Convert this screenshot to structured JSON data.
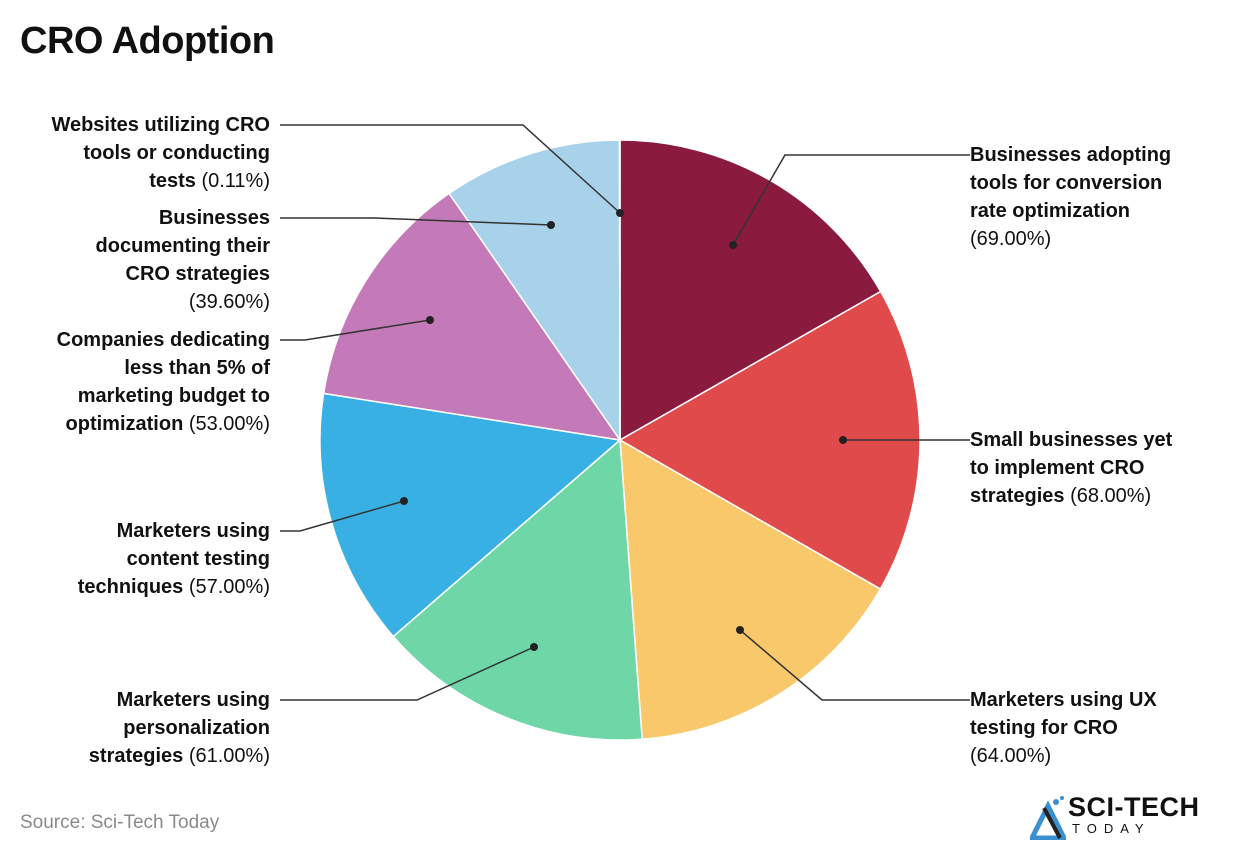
{
  "title": "CRO Adoption",
  "source": "Source: Sci-Tech Today",
  "logo": {
    "name": "SCI-TECH",
    "sub": "TODAY"
  },
  "chart_data": {
    "type": "pie",
    "title": "CRO Adoption",
    "slices": [
      {
        "lines": [
          "Businesses adopting",
          "tools for conversion",
          "rate optimization",
          ""
        ],
        "value": 69.0,
        "value_label": "(69.00%)",
        "color": "#8B1A3F"
      },
      {
        "lines": [
          "Small businesses yet",
          "to implement CRO",
          "strategies "
        ],
        "value": 68.0,
        "value_label": "(68.00%)",
        "color": "#E04A4A"
      },
      {
        "lines": [
          "Marketers using UX",
          "testing for CRO",
          ""
        ],
        "value": 64.0,
        "value_label": "(64.00%)",
        "color": "#F9C86A"
      },
      {
        "lines": [
          "Marketers using",
          "personalization",
          "strategies "
        ],
        "value": 61.0,
        "value_label": "(61.00%)",
        "color": "#6FD6A8"
      },
      {
        "lines": [
          "Marketers using",
          "content testing",
          "techniques "
        ],
        "value": 57.0,
        "value_label": "(57.00%)",
        "color": "#38B0E3"
      },
      {
        "lines": [
          "Companies dedicating",
          "less than 5% of",
          "marketing budget to",
          "optimization "
        ],
        "value": 53.0,
        "value_label": "(53.00%)",
        "color": "#C47AB9"
      },
      {
        "lines": [
          "Businesses",
          "documenting their",
          "CRO strategies",
          ""
        ],
        "value": 39.6,
        "value_label": "(39.60%)",
        "color": "#A8D2EA"
      },
      {
        "lines": [
          "Websites utilizing CRO",
          "tools or conducting",
          "tests "
        ],
        "value": 0.11,
        "value_label": "(0.11%)",
        "color": "#C9C9C9"
      }
    ]
  }
}
